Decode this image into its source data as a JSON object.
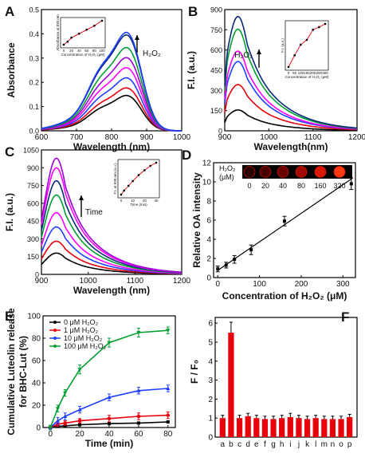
{
  "colors": {
    "black": "#000000",
    "red": "#e8000b",
    "blue": "#1f3fff",
    "magenta": "#ff00ff",
    "violet": "#a000d8",
    "green": "#00a030",
    "navy": "#0a2a78",
    "bar": "#e8000b"
  },
  "chart_data": [
    {
      "id": "A",
      "type": "line",
      "panel_label": "A",
      "xlabel": "Wavelength (nm)",
      "ylabel": "Absorbance",
      "xlim": [
        550,
        1000
      ],
      "ylim": [
        0,
        0.5
      ],
      "xticks": [
        "600",
        "700",
        "800",
        "900",
        "1000"
      ],
      "yticks": [
        "0.0",
        "0.1",
        "0.2",
        "0.3",
        "0.4",
        "0.5"
      ],
      "annotation": "H₂O₂",
      "peaks": [
        0.14,
        0.17,
        0.21,
        0.25,
        0.29,
        0.33,
        0.38,
        0.39
      ],
      "series_colors": [
        "black",
        "red",
        "blue",
        "magenta",
        "violet",
        "green",
        "navy",
        "blue"
      ],
      "inset": {
        "xlabel": "Concentration of H₂O₂ (μM)",
        "ylabel": "Absorbance at 830 nm",
        "xticks": [
          "0",
          "20",
          "40",
          "60",
          "80",
          "100"
        ],
        "x": [
          0,
          10,
          20,
          40,
          60,
          80,
          100
        ],
        "y": [
          0.14,
          0.17,
          0.21,
          0.25,
          0.29,
          0.33,
          0.38
        ]
      }
    },
    {
      "id": "B",
      "type": "line",
      "panel_label": "B",
      "xlabel": "Wavelength(nm)",
      "ylabel": "F.I. (a.u.)",
      "xlim": [
        900,
        1200
      ],
      "ylim": [
        0,
        1050
      ],
      "xticks": [
        "900",
        "1000",
        "1100",
        "1200"
      ],
      "yticks": [
        "0",
        "150",
        "300",
        "450",
        "600",
        "750",
        "900"
      ],
      "annotation": "H₂O₂",
      "peaks": [
        180,
        400,
        600,
        690,
        880,
        990
      ],
      "series_colors": [
        "black",
        "red",
        "blue",
        "magenta",
        "green",
        "navy"
      ],
      "inset": {
        "xlabel": "Concentration of H₂O₂ (μM)",
        "ylabel": "F.I. (a.u.)",
        "xticks": [
          "0",
          "50",
          "100",
          "150",
          "200",
          "250",
          "300"
        ],
        "x": [
          0,
          50,
          100,
          150,
          200,
          250,
          300
        ],
        "y": [
          180,
          400,
          600,
          690,
          880,
          930,
          990
        ]
      }
    },
    {
      "id": "C",
      "type": "line",
      "panel_label": "C",
      "xlabel": "Wavelength (nm)",
      "ylabel": "F.I. (a.u.)",
      "xlim": [
        900,
        1200
      ],
      "ylim": [
        0,
        1050
      ],
      "xticks": [
        "900",
        "1000",
        "1100",
        "1200"
      ],
      "yticks": [
        "0",
        "150",
        "300",
        "450",
        "600",
        "750",
        "900",
        "1050"
      ],
      "annotation": "Time",
      "peaks": [
        180,
        280,
        400,
        520,
        670,
        790,
        900,
        980
      ],
      "series_colors": [
        "black",
        "red",
        "blue",
        "magenta",
        "green",
        "navy",
        "magenta",
        "violet"
      ],
      "inset": {
        "xlabel": "Time (min)",
        "ylabel": "F.I. at 930 nm (a.u.)",
        "xticks": [
          "0",
          "10",
          "20",
          "30"
        ],
        "x": [
          0,
          2,
          5,
          8,
          12,
          16,
          20,
          24
        ],
        "y": [
          180,
          280,
          400,
          520,
          670,
          790,
          900,
          980
        ]
      }
    },
    {
      "id": "D",
      "type": "scatter",
      "panel_label": "D",
      "xlabel": "Concentration of H₂O₂ (μM)",
      "ylabel": "Relative OA intensity",
      "xlim": [
        -10,
        330
      ],
      "ylim": [
        0,
        12
      ],
      "xticks": [
        "0",
        "100",
        "200",
        "300"
      ],
      "yticks": [
        "0",
        "2",
        "4",
        "6",
        "8",
        "10",
        "12"
      ],
      "x": [
        0,
        20,
        40,
        80,
        160,
        320
      ],
      "y": [
        0.9,
        1.3,
        1.9,
        2.9,
        5.9,
        9.8
      ],
      "err": [
        0.3,
        0.3,
        0.4,
        0.5,
        0.5,
        0.6
      ],
      "strip": {
        "unit_label": "H₂O₂ (μM)",
        "labels": [
          "0",
          "20",
          "40",
          "80",
          "160",
          "320"
        ]
      }
    },
    {
      "id": "E",
      "type": "line",
      "panel_label": "E",
      "xlabel": "Time (min)",
      "ylabel": "Cumulative Luteolin release for BHC-Lut (%)",
      "xlim": [
        -5,
        85
      ],
      "ylim": [
        0,
        100
      ],
      "xticks": [
        "0",
        "20",
        "40",
        "60",
        "80"
      ],
      "yticks": [
        "0",
        "20",
        "40",
        "60",
        "80",
        "100"
      ],
      "x": [
        0,
        5,
        10,
        20,
        40,
        60,
        80
      ],
      "series": [
        {
          "name": "0 μM H₂O₂",
          "color": "black",
          "values": [
            0,
            1,
            1.5,
            2.5,
            3.5,
            4,
            5
          ],
          "err": [
            1,
            1,
            1,
            1,
            1,
            1,
            1
          ]
        },
        {
          "name": "1 μM H₂O₂",
          "color": "red",
          "values": [
            0,
            3,
            4,
            6,
            8,
            10,
            11
          ],
          "err": [
            1,
            2,
            2,
            2,
            3,
            3,
            3
          ]
        },
        {
          "name": "10 μM H₂O₂",
          "color": "blue",
          "values": [
            0,
            6,
            10,
            16,
            27,
            33,
            35
          ],
          "err": [
            2,
            3,
            3,
            3,
            3,
            3,
            3
          ]
        },
        {
          "name": "100 μM H₂O₂",
          "color": "green",
          "values": [
            0,
            17,
            31,
            52,
            76,
            85,
            87
          ],
          "err": [
            2,
            3,
            3,
            4,
            4,
            4,
            3
          ]
        }
      ]
    },
    {
      "id": "F",
      "type": "bar",
      "panel_label": "F",
      "ylabel": "F / F₀",
      "ylim": [
        0,
        6.3
      ],
      "yticks": [
        "0",
        "1",
        "2",
        "3",
        "4",
        "5",
        "6"
      ],
      "categories": [
        "a",
        "b",
        "c",
        "d",
        "e",
        "f",
        "g",
        "h",
        "i",
        "j",
        "k",
        "l",
        "m",
        "n",
        "o",
        "p"
      ],
      "values": [
        1.0,
        5.5,
        1.0,
        1.1,
        1.0,
        0.95,
        0.95,
        1.0,
        1.05,
        1.0,
        0.95,
        1.0,
        0.95,
        0.95,
        0.95,
        1.05
      ],
      "err": [
        0.15,
        0.55,
        0.15,
        0.15,
        0.15,
        0.15,
        0.15,
        0.15,
        0.2,
        0.15,
        0.15,
        0.15,
        0.15,
        0.15,
        0.15,
        0.15
      ]
    }
  ]
}
